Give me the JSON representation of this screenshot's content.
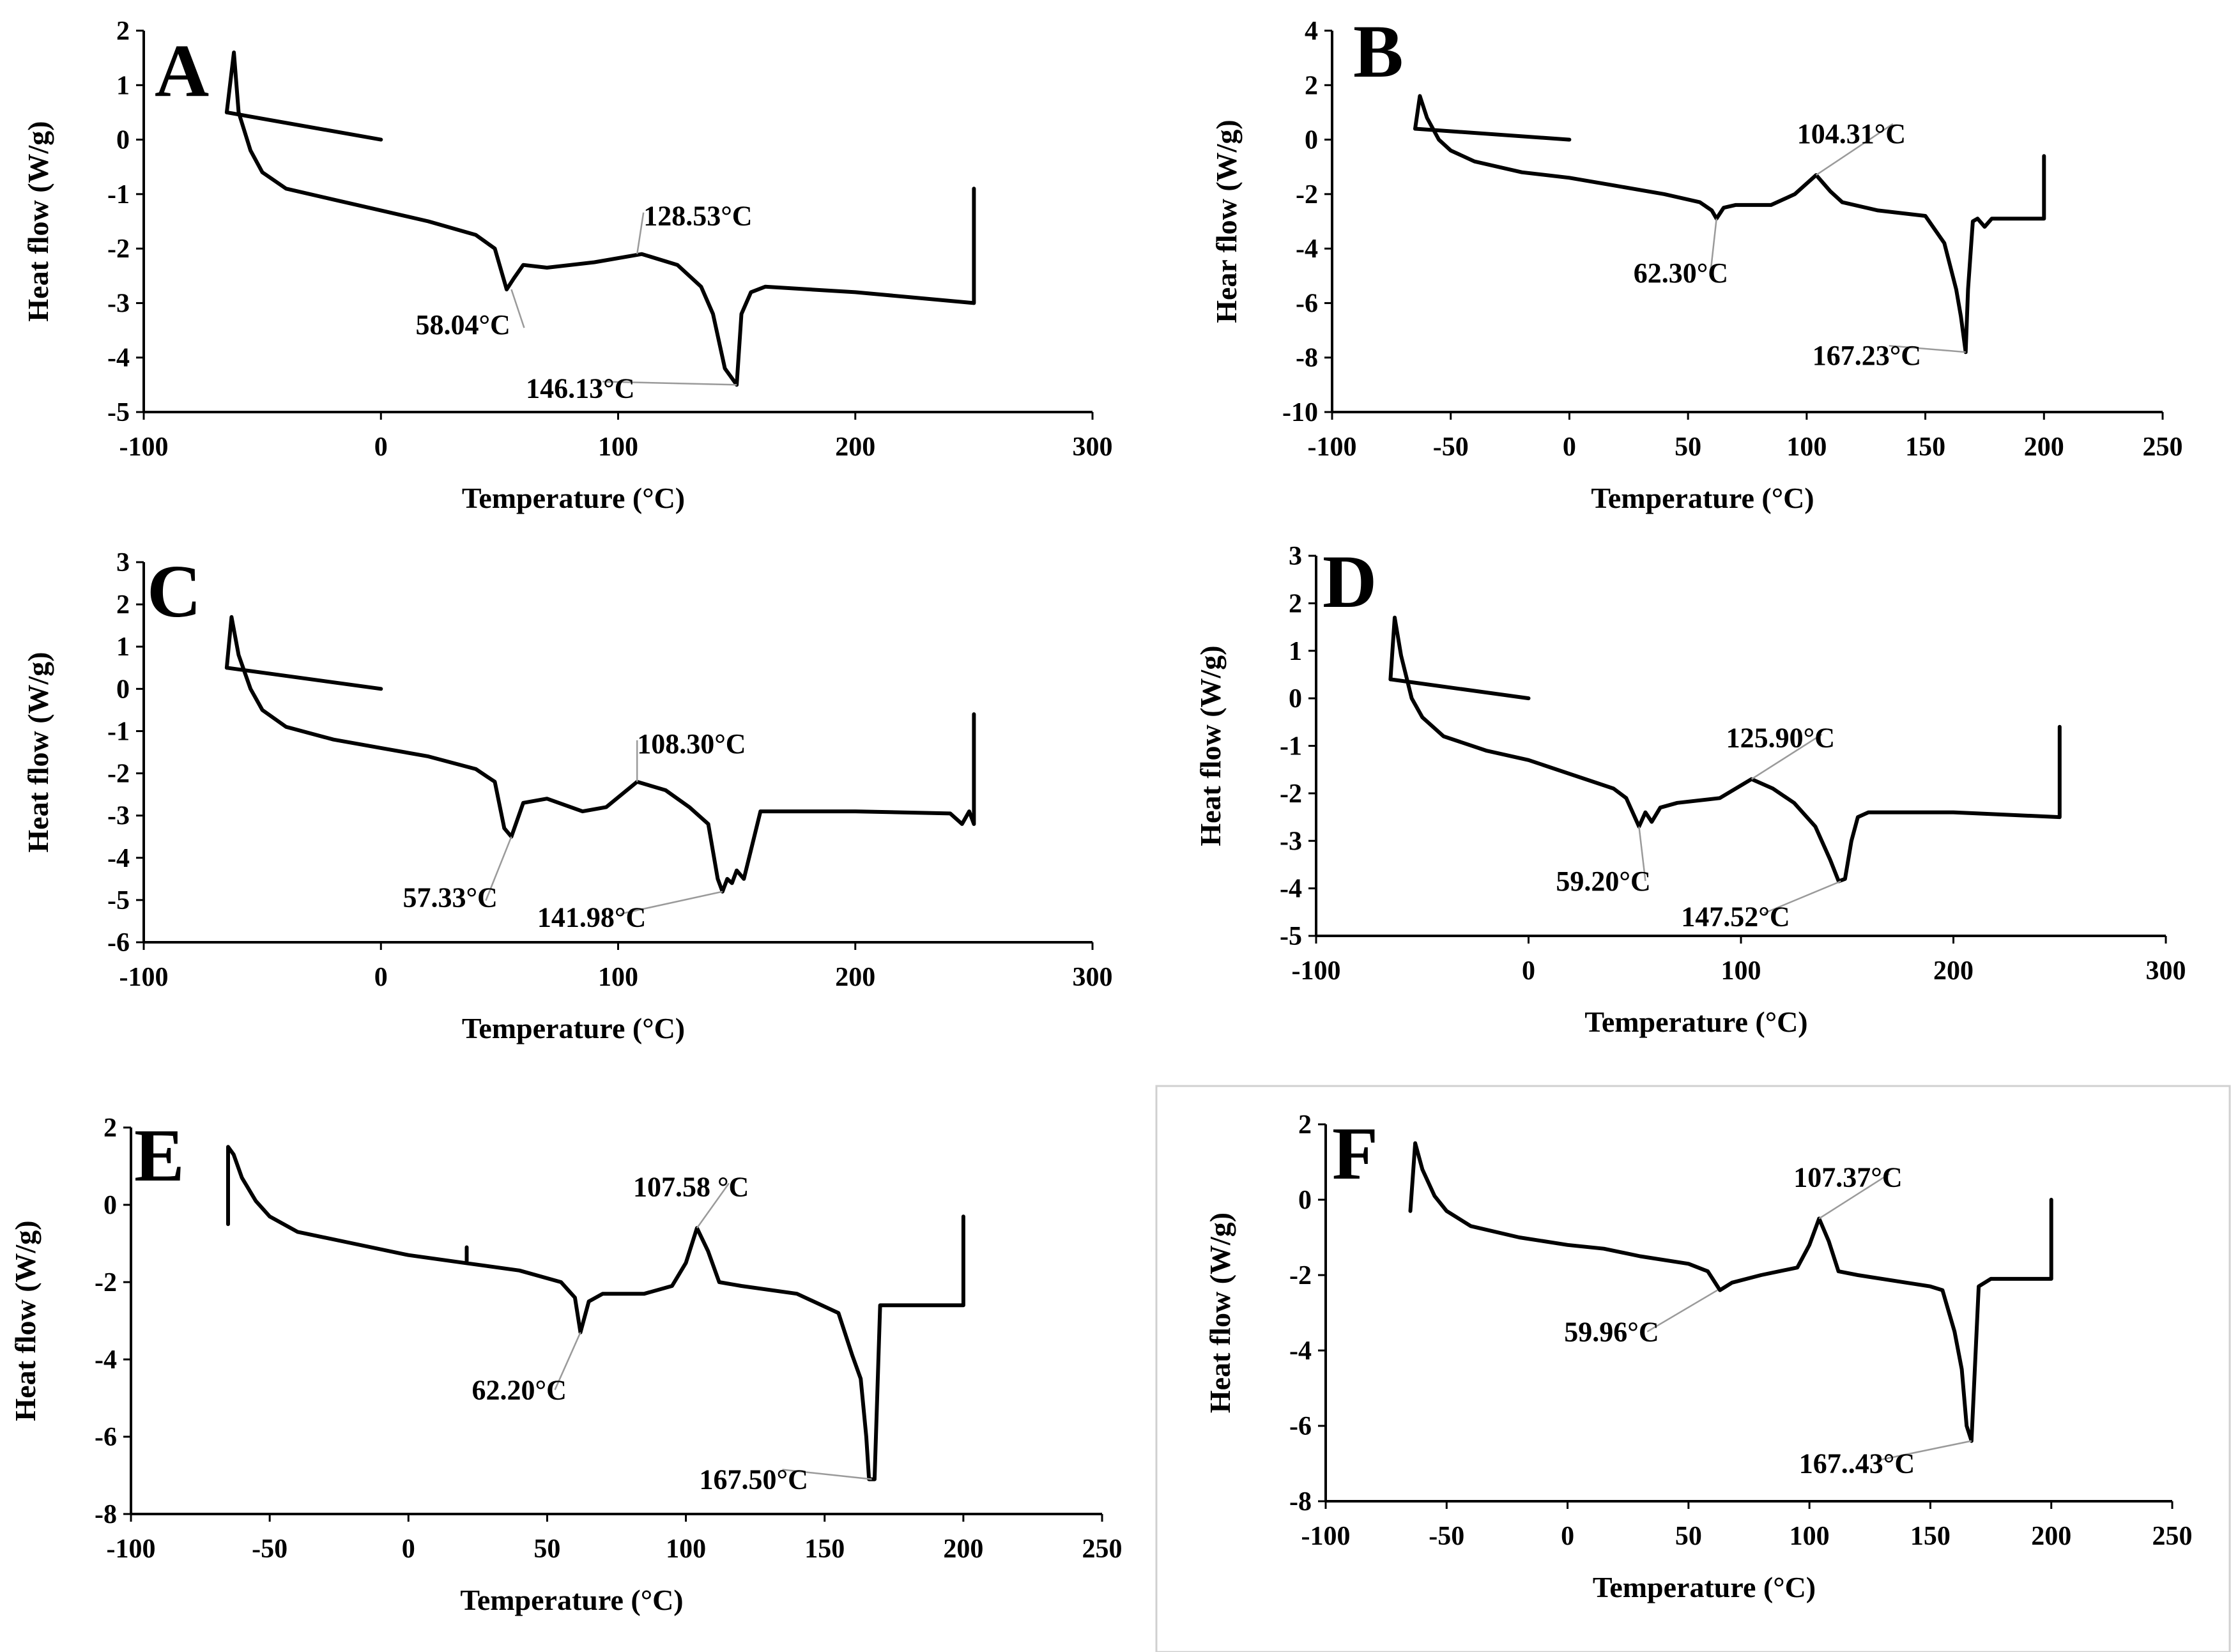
{
  "chart_data": [
    {
      "type": "line",
      "panel": "A",
      "xlabel": "Temperature (°C)",
      "ylabel": "Heat flow (W/g)",
      "xlim": [
        -100,
        300
      ],
      "ylim": [
        -5,
        2
      ],
      "xticks": [
        -100,
        0,
        100,
        200,
        300
      ],
      "yticks": [
        -5,
        -4,
        -3,
        -2,
        -1,
        0,
        1,
        2
      ],
      "series": [
        {
          "name": "cooling",
          "x": [
            -65,
            0
          ],
          "y": [
            0.5,
            0
          ]
        },
        {
          "name": "heating",
          "x": [
            -65,
            -62,
            -60,
            -55,
            -50,
            -40,
            -20,
            0,
            20,
            40,
            48,
            53,
            56,
            60,
            70,
            90,
            110,
            125,
            135,
            140,
            145,
            150,
            152,
            156,
            162,
            200,
            250,
            250
          ],
          "y": [
            0.5,
            1.6,
            0.5,
            -0.2,
            -0.6,
            -0.9,
            -1.1,
            -1.3,
            -1.5,
            -1.75,
            -2.0,
            -2.75,
            -2.55,
            -2.3,
            -2.35,
            -2.25,
            -2.1,
            -2.3,
            -2.7,
            -3.2,
            -4.2,
            -4.5,
            -3.2,
            -2.8,
            -2.7,
            -2.8,
            -3.0,
            -0.9
          ]
        }
      ],
      "annotations": [
        {
          "text": "58.04°C",
          "x": 55,
          "y": -2.75
        },
        {
          "text": "128.53°C",
          "x": 108,
          "y": -2.1
        },
        {
          "text": "146.13°C",
          "x": 150,
          "y": -4.5
        }
      ]
    },
    {
      "type": "line",
      "panel": "B",
      "xlabel": "Temperature (°C)",
      "ylabel": "Hear flow (W/g)",
      "xlim": [
        -100,
        250
      ],
      "ylim": [
        -10,
        4
      ],
      "xticks": [
        -100,
        -50,
        0,
        50,
        100,
        150,
        200,
        250
      ],
      "yticks": [
        -10,
        -8,
        -6,
        -4,
        -2,
        0,
        2,
        4
      ],
      "series": [
        {
          "name": "cooling",
          "x": [
            -65,
            0
          ],
          "y": [
            0.4,
            0
          ]
        },
        {
          "name": "heating",
          "x": [
            -65,
            -63,
            -60,
            -55,
            -50,
            -40,
            -20,
            0,
            20,
            40,
            55,
            60,
            62,
            65,
            70,
            85,
            95,
            104,
            110,
            115,
            130,
            150,
            158,
            163,
            165,
            167,
            168,
            170,
            172,
            175,
            178,
            180,
            200,
            200
          ],
          "y": [
            0.4,
            1.6,
            0.8,
            0.0,
            -0.4,
            -0.8,
            -1.2,
            -1.4,
            -1.7,
            -2.0,
            -2.3,
            -2.6,
            -2.9,
            -2.5,
            -2.4,
            -2.4,
            -2.0,
            -1.3,
            -1.9,
            -2.3,
            -2.6,
            -2.8,
            -3.8,
            -5.5,
            -6.5,
            -7.8,
            -5.5,
            -3.0,
            -2.9,
            -3.2,
            -2.9,
            -2.9,
            -2.9,
            -0.6
          ]
        }
      ],
      "annotations": [
        {
          "text": "104.31°C",
          "x": 104,
          "y": -1.3
        },
        {
          "text": "62.30°C",
          "x": 62,
          "y": -2.9
        },
        {
          "text": "167.23°C",
          "x": 167,
          "y": -7.8
        }
      ]
    },
    {
      "type": "line",
      "panel": "C",
      "xlabel": "Temperature (°C)",
      "ylabel": "Heat flow (W/g)",
      "xlim": [
        -100,
        300
      ],
      "ylim": [
        -6,
        3
      ],
      "xticks": [
        -100,
        0,
        100,
        200,
        300
      ],
      "yticks": [
        -6,
        -5,
        -4,
        -3,
        -2,
        -1,
        0,
        1,
        2,
        3
      ],
      "series": [
        {
          "name": "cooling",
          "x": [
            -65,
            0
          ],
          "y": [
            0.5,
            0
          ]
        },
        {
          "name": "heating",
          "x": [
            -65,
            -63,
            -60,
            -55,
            -50,
            -40,
            -20,
            0,
            20,
            40,
            48,
            52,
            55,
            60,
            70,
            85,
            95,
            108,
            120,
            130,
            138,
            142,
            144,
            146,
            148,
            150,
            153,
            160,
            200,
            240,
            245,
            248,
            250,
            250
          ],
          "y": [
            0.5,
            1.7,
            0.8,
            0.0,
            -0.5,
            -0.9,
            -1.2,
            -1.4,
            -1.6,
            -1.9,
            -2.2,
            -3.3,
            -3.5,
            -2.7,
            -2.6,
            -2.9,
            -2.8,
            -2.2,
            -2.4,
            -2.8,
            -3.2,
            -4.5,
            -4.8,
            -4.5,
            -4.6,
            -4.3,
            -4.5,
            -2.9,
            -2.9,
            -2.95,
            -3.2,
            -2.9,
            -3.2,
            -0.6
          ]
        }
      ],
      "annotations": [
        {
          "text": "108.30°C",
          "x": 108,
          "y": -2.2
        },
        {
          "text": "57.33°C",
          "x": 55,
          "y": -3.5
        },
        {
          "text": "141.98°C",
          "x": 144,
          "y": -4.8
        }
      ]
    },
    {
      "type": "line",
      "panel": "D",
      "xlabel": "Temperature (°C)",
      "ylabel": "Heat flow (W/g)",
      "xlim": [
        -100,
        300
      ],
      "ylim": [
        -5,
        3
      ],
      "xticks": [
        -100,
        0,
        100,
        200,
        300
      ],
      "yticks": [
        -5,
        -4,
        -3,
        -2,
        -1,
        0,
        1,
        2,
        3
      ],
      "series": [
        {
          "name": "cooling",
          "x": [
            -65,
            0
          ],
          "y": [
            0.4,
            0
          ]
        },
        {
          "name": "heating",
          "x": [
            -65,
            -63,
            -60,
            -55,
            -50,
            -40,
            -20,
            0,
            20,
            40,
            46,
            50,
            52,
            55,
            58,
            62,
            70,
            90,
            105,
            115,
            125,
            135,
            142,
            146,
            149,
            152,
            155,
            160,
            200,
            250,
            250
          ],
          "y": [
            0.4,
            1.7,
            0.9,
            0.0,
            -0.4,
            -0.8,
            -1.1,
            -1.3,
            -1.6,
            -1.9,
            -2.1,
            -2.5,
            -2.7,
            -2.4,
            -2.6,
            -2.3,
            -2.2,
            -2.1,
            -1.7,
            -1.9,
            -2.2,
            -2.7,
            -3.4,
            -3.85,
            -3.8,
            -3.0,
            -2.5,
            -2.4,
            -2.4,
            -2.5,
            -0.6
          ]
        }
      ],
      "annotations": [
        {
          "text": "125.90°C",
          "x": 105,
          "y": -1.7
        },
        {
          "text": "59.20°C",
          "x": 52,
          "y": -2.7
        },
        {
          "text": "147.52°C",
          "x": 147,
          "y": -3.85
        }
      ]
    },
    {
      "type": "line",
      "panel": "E",
      "xlabel": "Temperature (°C)",
      "ylabel": "Heat flow (W/g)",
      "xlim": [
        -100,
        250
      ],
      "ylim": [
        -8,
        2
      ],
      "xticks": [
        -100,
        -50,
        0,
        50,
        100,
        150,
        200,
        250
      ],
      "yticks": [
        -8,
        -6,
        -4,
        -2,
        0,
        2
      ],
      "series": [
        {
          "name": "heating",
          "x": [
            -65,
            -65,
            -63,
            -60,
            -55,
            -50,
            -40,
            -20,
            0,
            20,
            40,
            55,
            60,
            62,
            65,
            70,
            85,
            95,
            100,
            104,
            108,
            112,
            120,
            140,
            155,
            160,
            163,
            165,
            166,
            168,
            170,
            200,
            200
          ],
          "y": [
            -0.5,
            1.5,
            1.3,
            0.7,
            0.1,
            -0.3,
            -0.7,
            -1.0,
            -1.3,
            -1.5,
            -1.7,
            -2.0,
            -2.4,
            -3.3,
            -2.5,
            -2.3,
            -2.3,
            -2.1,
            -1.5,
            -0.6,
            -1.2,
            -2.0,
            -2.1,
            -2.3,
            -2.8,
            -3.9,
            -4.5,
            -6.0,
            -7.1,
            -7.1,
            -2.6,
            -2.6,
            -0.3
          ]
        },
        {
          "name": "artifact",
          "x": [
            21,
            21
          ],
          "y": [
            -1.1,
            -1.45
          ]
        }
      ],
      "annotations": [
        {
          "text": "107.58 °C",
          "x": 104,
          "y": -0.6
        },
        {
          "text": "62.20°C",
          "x": 62,
          "y": -3.3
        },
        {
          "text": "167.50°C",
          "x": 167,
          "y": -7.1
        }
      ]
    },
    {
      "type": "line",
      "panel": "F",
      "xlabel": "Temperature (°C)",
      "ylabel": "Heat flow (W/g)",
      "xlim": [
        -100,
        250
      ],
      "ylim": [
        -8,
        2
      ],
      "xticks": [
        -100,
        -50,
        0,
        50,
        100,
        150,
        200,
        250
      ],
      "yticks": [
        -8,
        -6,
        -4,
        -2,
        0,
        2
      ],
      "series": [
        {
          "name": "heating",
          "x": [
            -65,
            -63,
            -60,
            -55,
            -50,
            -40,
            -20,
            0,
            15,
            30,
            50,
            58,
            60,
            63,
            68,
            80,
            95,
            100,
            104,
            108,
            112,
            120,
            140,
            150,
            155,
            160,
            163,
            165,
            167,
            170,
            175,
            200,
            200
          ],
          "y": [
            -0.3,
            1.5,
            0.8,
            0.1,
            -0.3,
            -0.7,
            -1.0,
            -1.2,
            -1.3,
            -1.5,
            -1.7,
            -1.9,
            -2.1,
            -2.4,
            -2.2,
            -2.0,
            -1.8,
            -1.2,
            -0.5,
            -1.1,
            -1.9,
            -2.0,
            -2.2,
            -2.3,
            -2.4,
            -3.5,
            -4.5,
            -6.0,
            -6.4,
            -2.3,
            -2.1,
            -2.1,
            0.0
          ]
        }
      ],
      "annotations": [
        {
          "text": "107.37°C",
          "x": 104,
          "y": -0.5
        },
        {
          "text": "59.96°C",
          "x": 62,
          "y": -2.4
        },
        {
          "text": "167..43°C",
          "x": 167,
          "y": -6.4
        }
      ]
    }
  ]
}
